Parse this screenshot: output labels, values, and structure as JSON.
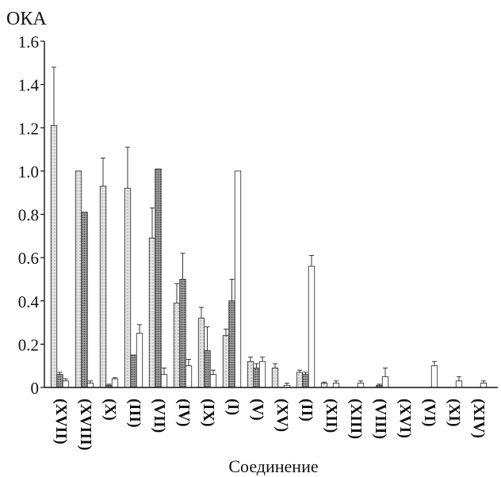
{
  "chart_data": {
    "type": "bar",
    "ylabel": "ОКА",
    "xlabel": "Соединение",
    "ylim": [
      0,
      1.6
    ],
    "yticks": [
      "0",
      "0.2",
      "0.4",
      "0.6",
      "0.8",
      "1.0",
      "1.2",
      "1.4",
      "1.6"
    ],
    "categories": [
      "(XVII)",
      "(XVIII)",
      "(X)",
      "(III)",
      "(VII)",
      "(IV)",
      "(IX)",
      "(I)",
      "(V)",
      "(XV)",
      "(II)",
      "(XII)",
      "(XIII)",
      "(VIII)",
      "(XVI)",
      "(VI)",
      "(XI)",
      "(XIV)"
    ],
    "series": [
      {
        "values": [
          1.21,
          1.0,
          0.93,
          0.92,
          0.69,
          0.39,
          0.32,
          0.24,
          0.12,
          0.09,
          0.07,
          0.02,
          0.0,
          0.0,
          0.0,
          0.0,
          0.0,
          0.0
        ]
      },
      {
        "values": [
          0.06,
          0.81,
          0.01,
          0.15,
          1.01,
          0.5,
          0.17,
          0.4,
          0.09,
          0.0,
          0.06,
          0.0,
          0.0,
          0.01,
          0.0,
          0.0,
          0.0,
          0.0
        ]
      },
      {
        "values": [
          0.03,
          0.02,
          0.04,
          0.25,
          0.06,
          0.1,
          0.06,
          1.0,
          0.12,
          0.01,
          0.56,
          0.02,
          0.02,
          0.05,
          0.0,
          0.1,
          0.03,
          0.02
        ]
      }
    ],
    "errors": [
      [
        0.27,
        0,
        0.13,
        0.19,
        0.14,
        0.09,
        0.05,
        0.03,
        0.02,
        0.02,
        0.01,
        0.005,
        0,
        0,
        0,
        0,
        0,
        0
      ],
      [
        0.01,
        0,
        0.005,
        0,
        0,
        0.12,
        0.11,
        0.1,
        0.02,
        0,
        0.01,
        0,
        0,
        0.005,
        0,
        0,
        0,
        0
      ],
      [
        0.01,
        0.01,
        0.005,
        0.04,
        0.03,
        0.03,
        0.02,
        0,
        0.02,
        0.01,
        0.05,
        0.01,
        0.01,
        0.04,
        0,
        0.02,
        0.02,
        0.01
      ]
    ],
    "bar_colors": [
      "#e2e2e2",
      "#9a9a9a",
      "#ffffff"
    ],
    "grid": false
  }
}
